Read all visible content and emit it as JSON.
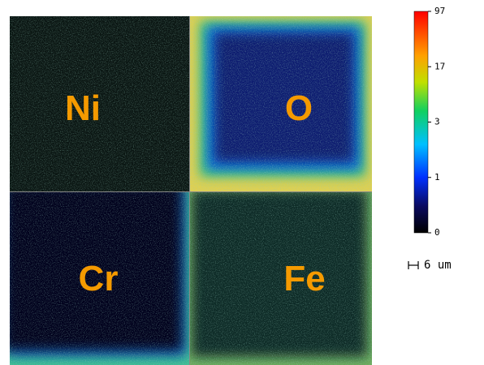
{
  "panels": [
    {
      "label": "Ni"
    },
    {
      "label": "O"
    },
    {
      "label": "Cr"
    },
    {
      "label": "Fe"
    }
  ],
  "colorbar": {
    "ticks": [
      97,
      17,
      3,
      1,
      0
    ]
  },
  "scale_bar": {
    "label": "6 um"
  }
}
